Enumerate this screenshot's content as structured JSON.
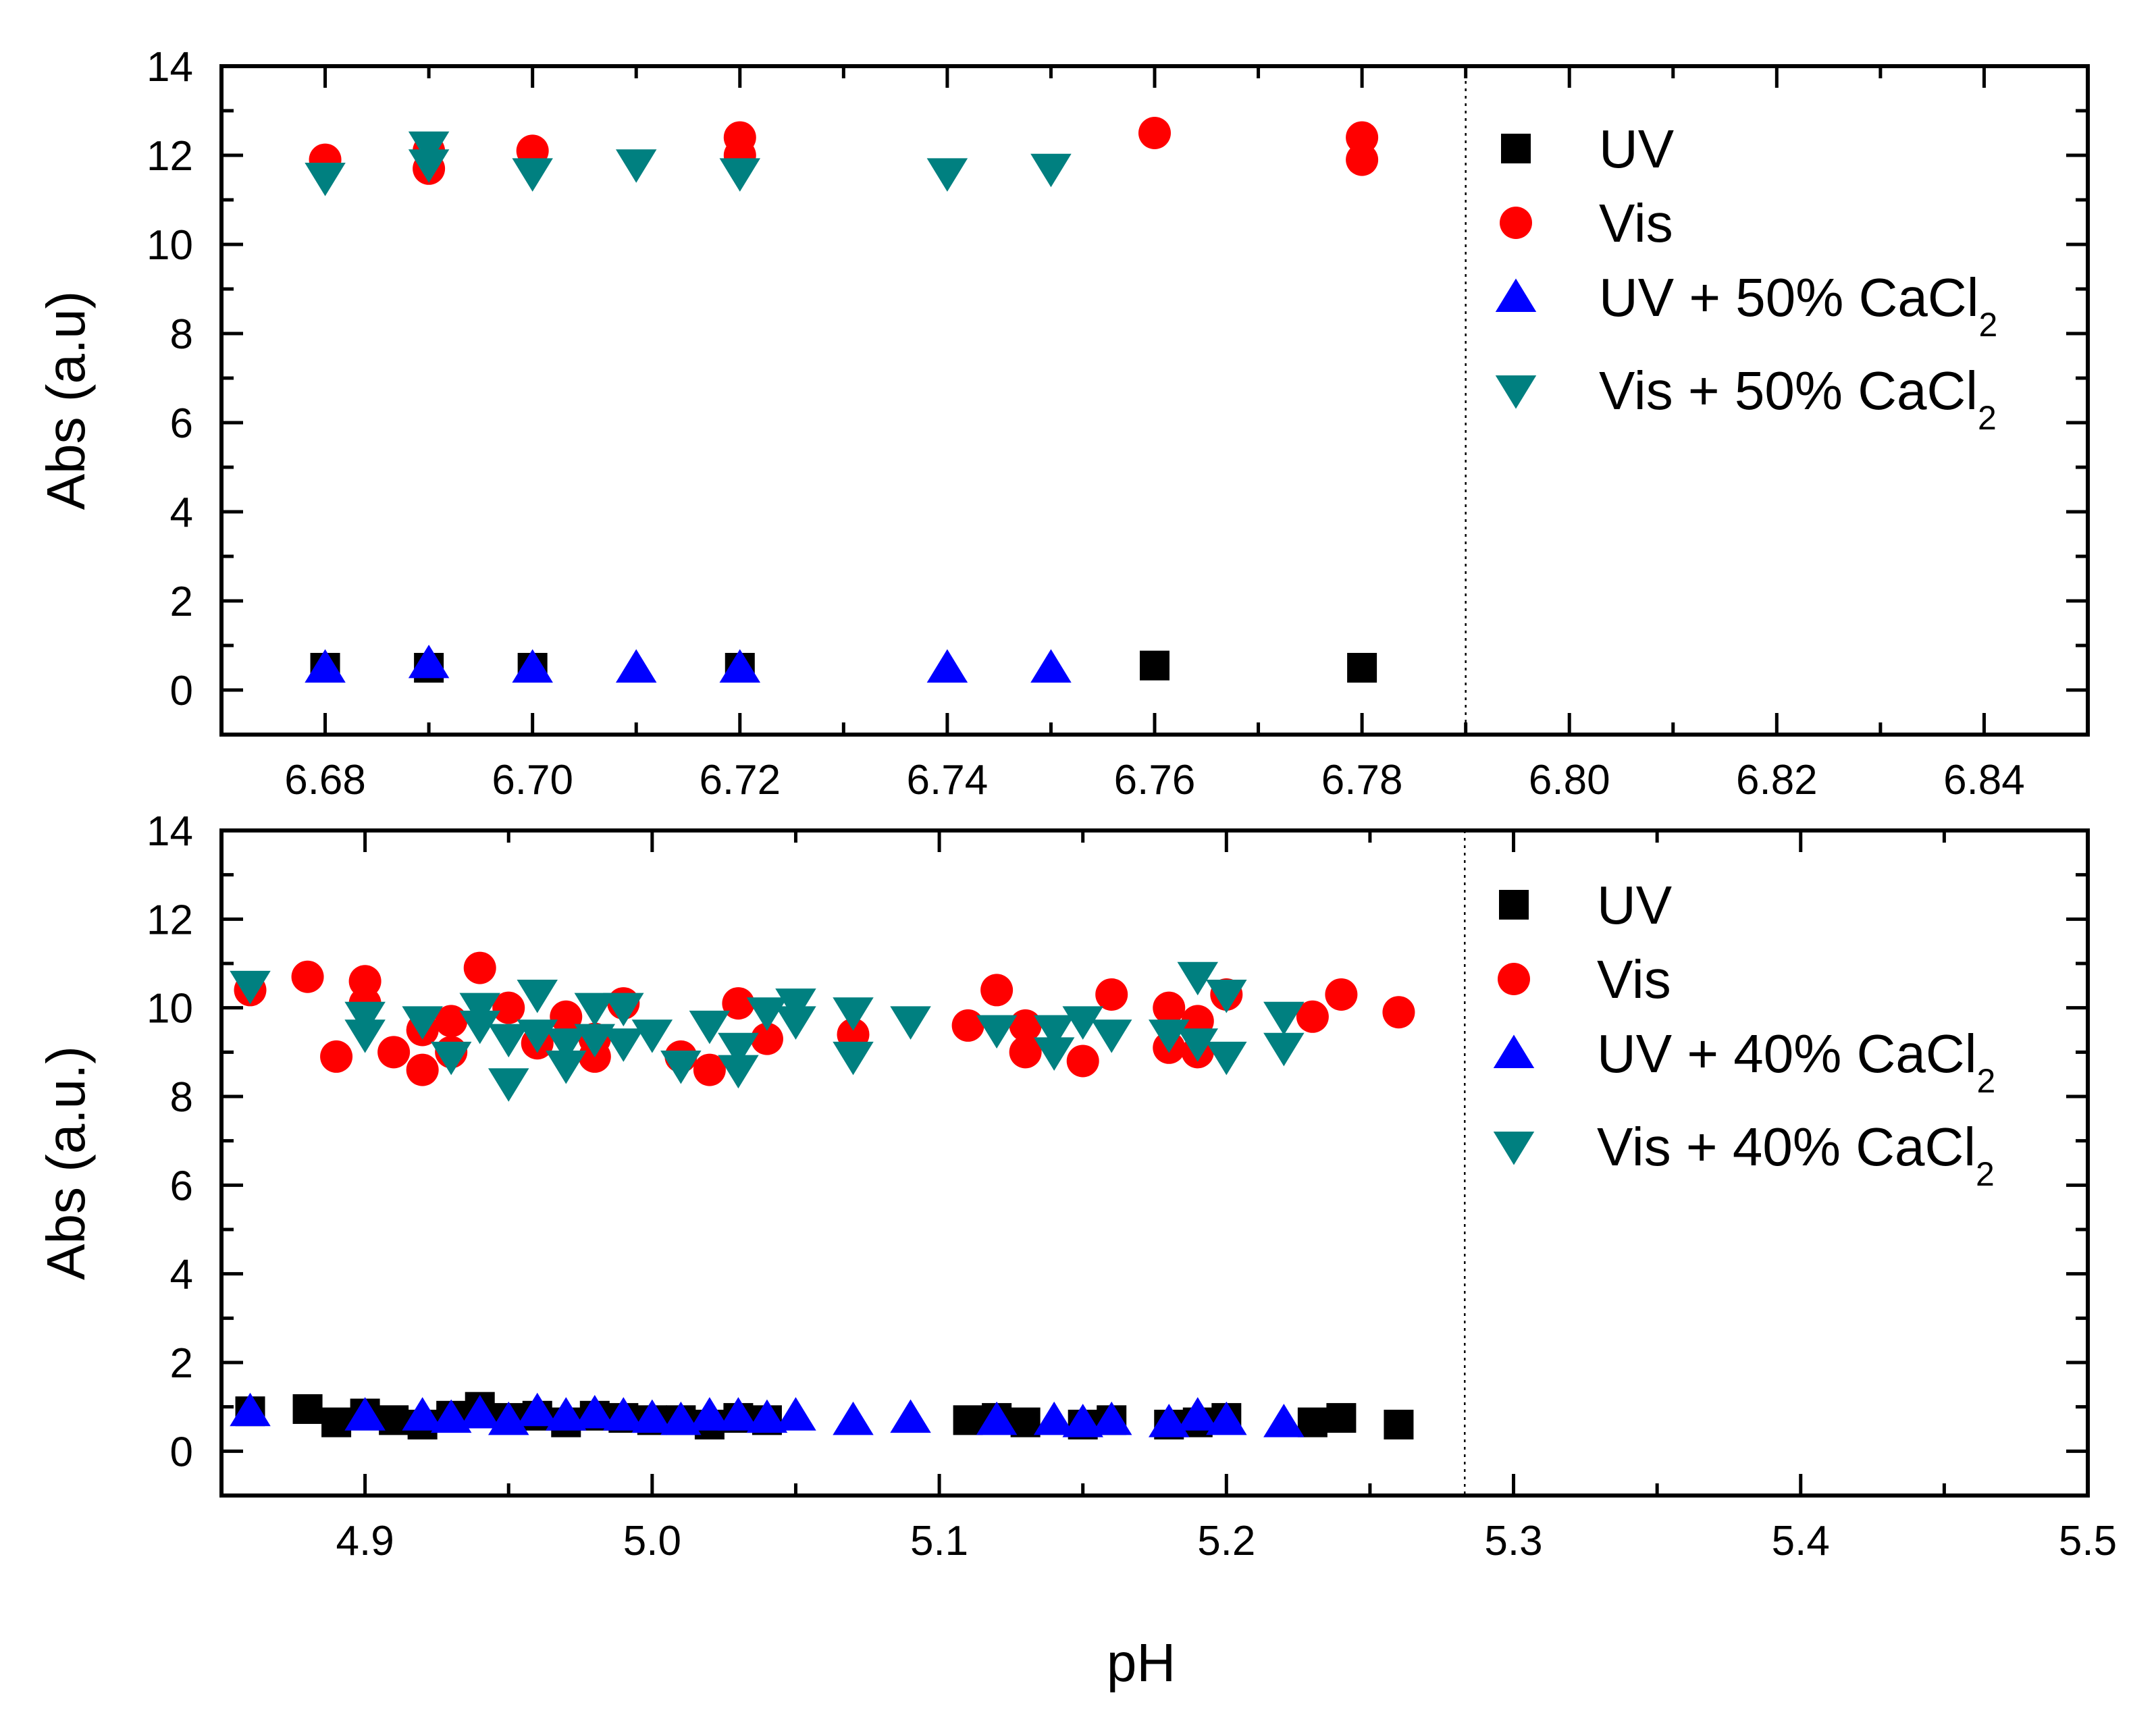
{
  "chart_data": [
    {
      "type": "scatter",
      "panel": "top",
      "title": "",
      "xlabel": "",
      "ylabel": "Abs (a.u)",
      "xlim": [
        6.67,
        6.85
      ],
      "ylim": [
        -1,
        14
      ],
      "xticks": [
        6.68,
        6.7,
        6.72,
        6.74,
        6.76,
        6.78,
        6.8,
        6.82,
        6.84
      ],
      "xtick_labels": [
        "6.68",
        "6.70",
        "6.72",
        "6.74",
        "6.76",
        "6.78",
        "6.80",
        "6.82",
        "6.84"
      ],
      "yticks": [
        0,
        2,
        4,
        6,
        8,
        10,
        12,
        14
      ],
      "ytick_labels": [
        "0",
        "2",
        "4",
        "6",
        "8",
        "10",
        "12",
        "14"
      ],
      "reference_line_x": 6.79,
      "legend_position": "right",
      "series": [
        {
          "name": "UV",
          "marker": "square",
          "color": "#000000",
          "x": [
            6.68,
            6.69,
            6.7,
            6.72,
            6.76,
            6.78
          ],
          "y": [
            0.5,
            0.5,
            0.5,
            0.5,
            0.55,
            0.5
          ]
        },
        {
          "name": "Vis",
          "marker": "circle",
          "color": "#ff0000",
          "x": [
            6.68,
            6.69,
            6.69,
            6.7,
            6.72,
            6.72,
            6.76,
            6.78,
            6.78
          ],
          "y": [
            11.9,
            11.7,
            12.1,
            12.1,
            12.0,
            12.4,
            12.5,
            11.9,
            12.4
          ]
        },
        {
          "name": "UV + 50% CaCl",
          "name_sub": "2",
          "marker": "triangle-up",
          "color": "#0000ff",
          "x": [
            6.68,
            6.69,
            6.7,
            6.71,
            6.72,
            6.74,
            6.75
          ],
          "y": [
            0.5,
            0.6,
            0.5,
            0.5,
            0.5,
            0.5,
            0.5
          ]
        },
        {
          "name": "Vis + 50% CaCl",
          "name_sub": "2",
          "marker": "triangle-down",
          "color": "#008080",
          "x": [
            6.68,
            6.69,
            6.69,
            6.7,
            6.71,
            6.72,
            6.74,
            6.75
          ],
          "y": [
            11.5,
            11.8,
            12.2,
            11.6,
            11.8,
            11.6,
            11.6,
            11.7
          ]
        }
      ]
    },
    {
      "type": "scatter",
      "panel": "bottom",
      "title": "",
      "xlabel": "pH",
      "ylabel": "Abs (a.u.)",
      "xlim": [
        4.85,
        5.5
      ],
      "ylim": [
        -1,
        14
      ],
      "xticks": [
        4.9,
        5.0,
        5.1,
        5.2,
        5.3,
        5.4,
        5.5
      ],
      "xtick_labels": [
        "4.9",
        "5.0",
        "5.1",
        "5.2",
        "5.3",
        "5.4",
        "5.5"
      ],
      "yticks": [
        0,
        2,
        4,
        6,
        8,
        10,
        12,
        14
      ],
      "ytick_labels": [
        "0",
        "2",
        "4",
        "6",
        "8",
        "10",
        "12",
        "14"
      ],
      "reference_line_x": 5.283,
      "legend_position": "right",
      "series": [
        {
          "name": "UV",
          "marker": "square",
          "color": "#000000",
          "x": [
            4.86,
            4.88,
            4.89,
            4.9,
            4.91,
            4.92,
            4.93,
            4.94,
            4.95,
            4.96,
            4.97,
            4.98,
            4.99,
            5.0,
            5.01,
            5.02,
            5.03,
            5.04,
            5.11,
            5.12,
            5.13,
            5.15,
            5.16,
            5.18,
            5.19,
            5.2,
            5.23,
            5.24,
            5.26
          ],
          "y": [
            0.9,
            0.95,
            0.65,
            0.85,
            0.7,
            0.6,
            0.8,
            1.0,
            0.75,
            0.8,
            0.65,
            0.8,
            0.75,
            0.7,
            0.7,
            0.6,
            0.75,
            0.7,
            0.7,
            0.75,
            0.65,
            0.6,
            0.7,
            0.6,
            0.65,
            0.75,
            0.65,
            0.75,
            0.6
          ]
        },
        {
          "name": "Vis",
          "marker": "circle",
          "color": "#ff0000",
          "x": [
            4.86,
            4.88,
            4.89,
            4.9,
            4.9,
            4.91,
            4.92,
            4.92,
            4.93,
            4.93,
            4.94,
            4.95,
            4.96,
            4.97,
            4.98,
            4.98,
            4.99,
            5.01,
            5.02,
            5.03,
            5.04,
            5.07,
            5.11,
            5.12,
            5.13,
            5.13,
            5.15,
            5.16,
            5.18,
            5.18,
            5.19,
            5.19,
            5.2,
            5.23,
            5.24,
            5.26
          ],
          "y": [
            10.4,
            10.7,
            8.9,
            10.6,
            10.1,
            9.0,
            8.6,
            9.5,
            9.7,
            9.0,
            10.9,
            10.0,
            9.2,
            9.8,
            9.3,
            8.9,
            10.1,
            8.9,
            8.6,
            10.1,
            9.3,
            9.4,
            9.6,
            10.4,
            9.6,
            9.0,
            8.8,
            10.3,
            10.0,
            9.1,
            9.7,
            9.0,
            10.3,
            9.8,
            10.3,
            9.9
          ]
        },
        {
          "name": "UV  + 40% CaCl",
          "name_sub": "2",
          "marker": "triangle-up",
          "color": "#0000ff",
          "x": [
            4.86,
            4.9,
            4.92,
            4.93,
            4.94,
            4.95,
            4.96,
            4.97,
            4.98,
            4.99,
            5.0,
            5.01,
            5.02,
            5.03,
            5.04,
            5.05,
            5.07,
            5.09,
            5.12,
            5.14,
            5.15,
            5.16,
            5.18,
            5.19,
            5.2,
            5.22
          ],
          "y": [
            0.9,
            0.8,
            0.8,
            0.75,
            0.85,
            0.7,
            0.9,
            0.8,
            0.85,
            0.8,
            0.75,
            0.7,
            0.8,
            0.8,
            0.75,
            0.8,
            0.7,
            0.75,
            0.7,
            0.7,
            0.65,
            0.7,
            0.65,
            0.8,
            0.7,
            0.65
          ]
        },
        {
          "name": "Vis  + 40% CaCl",
          "name_sub": "2",
          "marker": "triangle-down",
          "color": "#008080",
          "x": [
            4.86,
            4.9,
            4.9,
            4.92,
            4.93,
            4.94,
            4.94,
            4.95,
            4.95,
            4.96,
            4.96,
            4.97,
            4.97,
            4.98,
            4.98,
            4.99,
            4.99,
            5.0,
            5.01,
            5.02,
            5.03,
            5.03,
            5.04,
            5.05,
            5.05,
            5.07,
            5.07,
            5.09,
            5.12,
            5.14,
            5.14,
            5.15,
            5.16,
            5.18,
            5.19,
            5.19,
            5.2,
            5.2,
            5.22,
            5.22
          ],
          "y": [
            10.5,
            9.8,
            9.4,
            9.7,
            8.9,
            10.0,
            9.6,
            9.3,
            8.3,
            10.3,
            9.4,
            9.2,
            8.7,
            10.0,
            9.3,
            10.0,
            9.2,
            9.4,
            8.7,
            9.6,
            9.1,
            8.6,
            9.9,
            10.1,
            9.7,
            9.9,
            8.9,
            9.7,
            9.5,
            9.5,
            9.0,
            9.7,
            9.4,
            9.4,
            10.7,
            9.2,
            10.3,
            8.9,
            9.8,
            9.1
          ]
        }
      ]
    }
  ]
}
